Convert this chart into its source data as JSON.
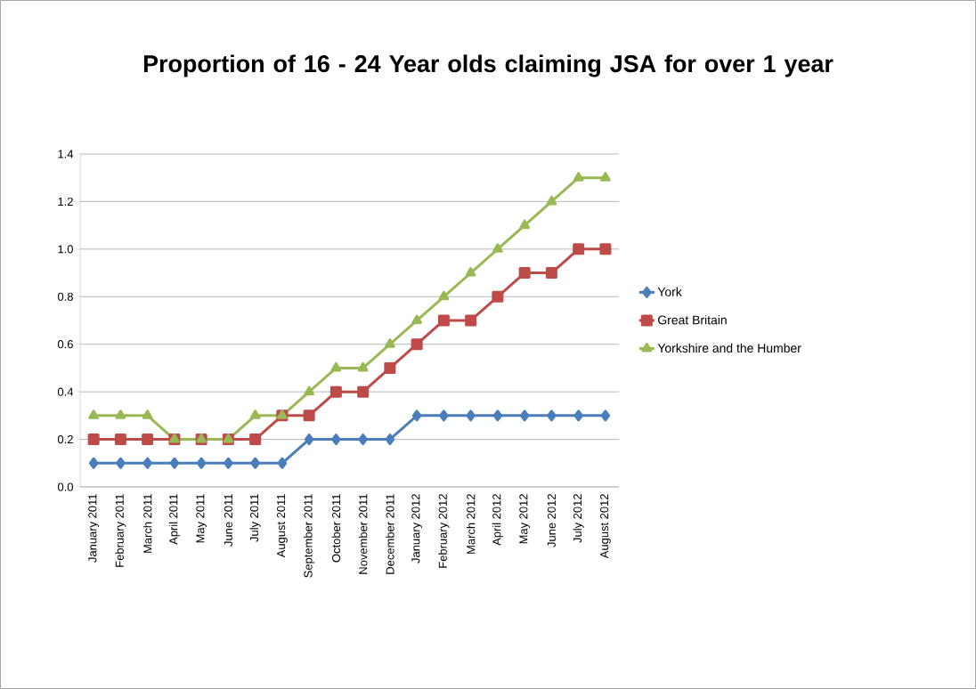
{
  "chart_data": {
    "type": "line",
    "title": "Proportion of 16 - 24 Year olds claiming JSA for over 1 year",
    "categories": [
      "January 2011",
      "February 2011",
      "March 2011",
      "April 2011",
      "May 2011",
      "June 2011",
      "July 2011",
      "August 2011",
      "September 2011",
      "October 2011",
      "November 2011",
      "December 2011",
      "January 2012",
      "February 2012",
      "March 2012",
      "April 2012",
      "May 2012",
      "June 2012",
      "July 2012",
      "August 2012"
    ],
    "series": [
      {
        "name": "York",
        "color": "#4a7ebb",
        "marker": "diamond",
        "values": [
          0.1,
          0.1,
          0.1,
          0.1,
          0.1,
          0.1,
          0.1,
          0.1,
          0.2,
          0.2,
          0.2,
          0.2,
          0.3,
          0.3,
          0.3,
          0.3,
          0.3,
          0.3,
          0.3,
          0.3
        ]
      },
      {
        "name": "Great Britain",
        "color": "#be4b48",
        "marker": "square",
        "values": [
          0.2,
          0.2,
          0.2,
          0.2,
          0.2,
          0.2,
          0.2,
          0.3,
          0.3,
          0.4,
          0.4,
          0.5,
          0.6,
          0.7,
          0.7,
          0.8,
          0.9,
          0.9,
          1.0,
          1.0
        ]
      },
      {
        "name": "Yorkshire and the Humber",
        "color": "#98b954",
        "marker": "triangle",
        "values": [
          0.3,
          0.3,
          0.3,
          0.2,
          0.2,
          0.2,
          0.3,
          0.3,
          0.4,
          0.5,
          0.5,
          0.6,
          0.7,
          0.8,
          0.9,
          1.0,
          1.1,
          1.2,
          1.3,
          1.3
        ]
      }
    ],
    "ylim": [
      0,
      1.4
    ],
    "yticks": [
      {
        "value": 0,
        "label": "0.0"
      },
      {
        "value": 0.2,
        "label": "0.2"
      },
      {
        "value": 0.4,
        "label": "0.4"
      },
      {
        "value": 0.6,
        "label": "0.6"
      },
      {
        "value": 0.8,
        "label": "0.8"
      },
      {
        "value": 1.0,
        "label": "1.0"
      },
      {
        "value": 1.2,
        "label": "1.2"
      },
      {
        "value": 1.4,
        "label": "1.4"
      }
    ],
    "grid": "y",
    "legend": "right",
    "line_style": "solid"
  }
}
